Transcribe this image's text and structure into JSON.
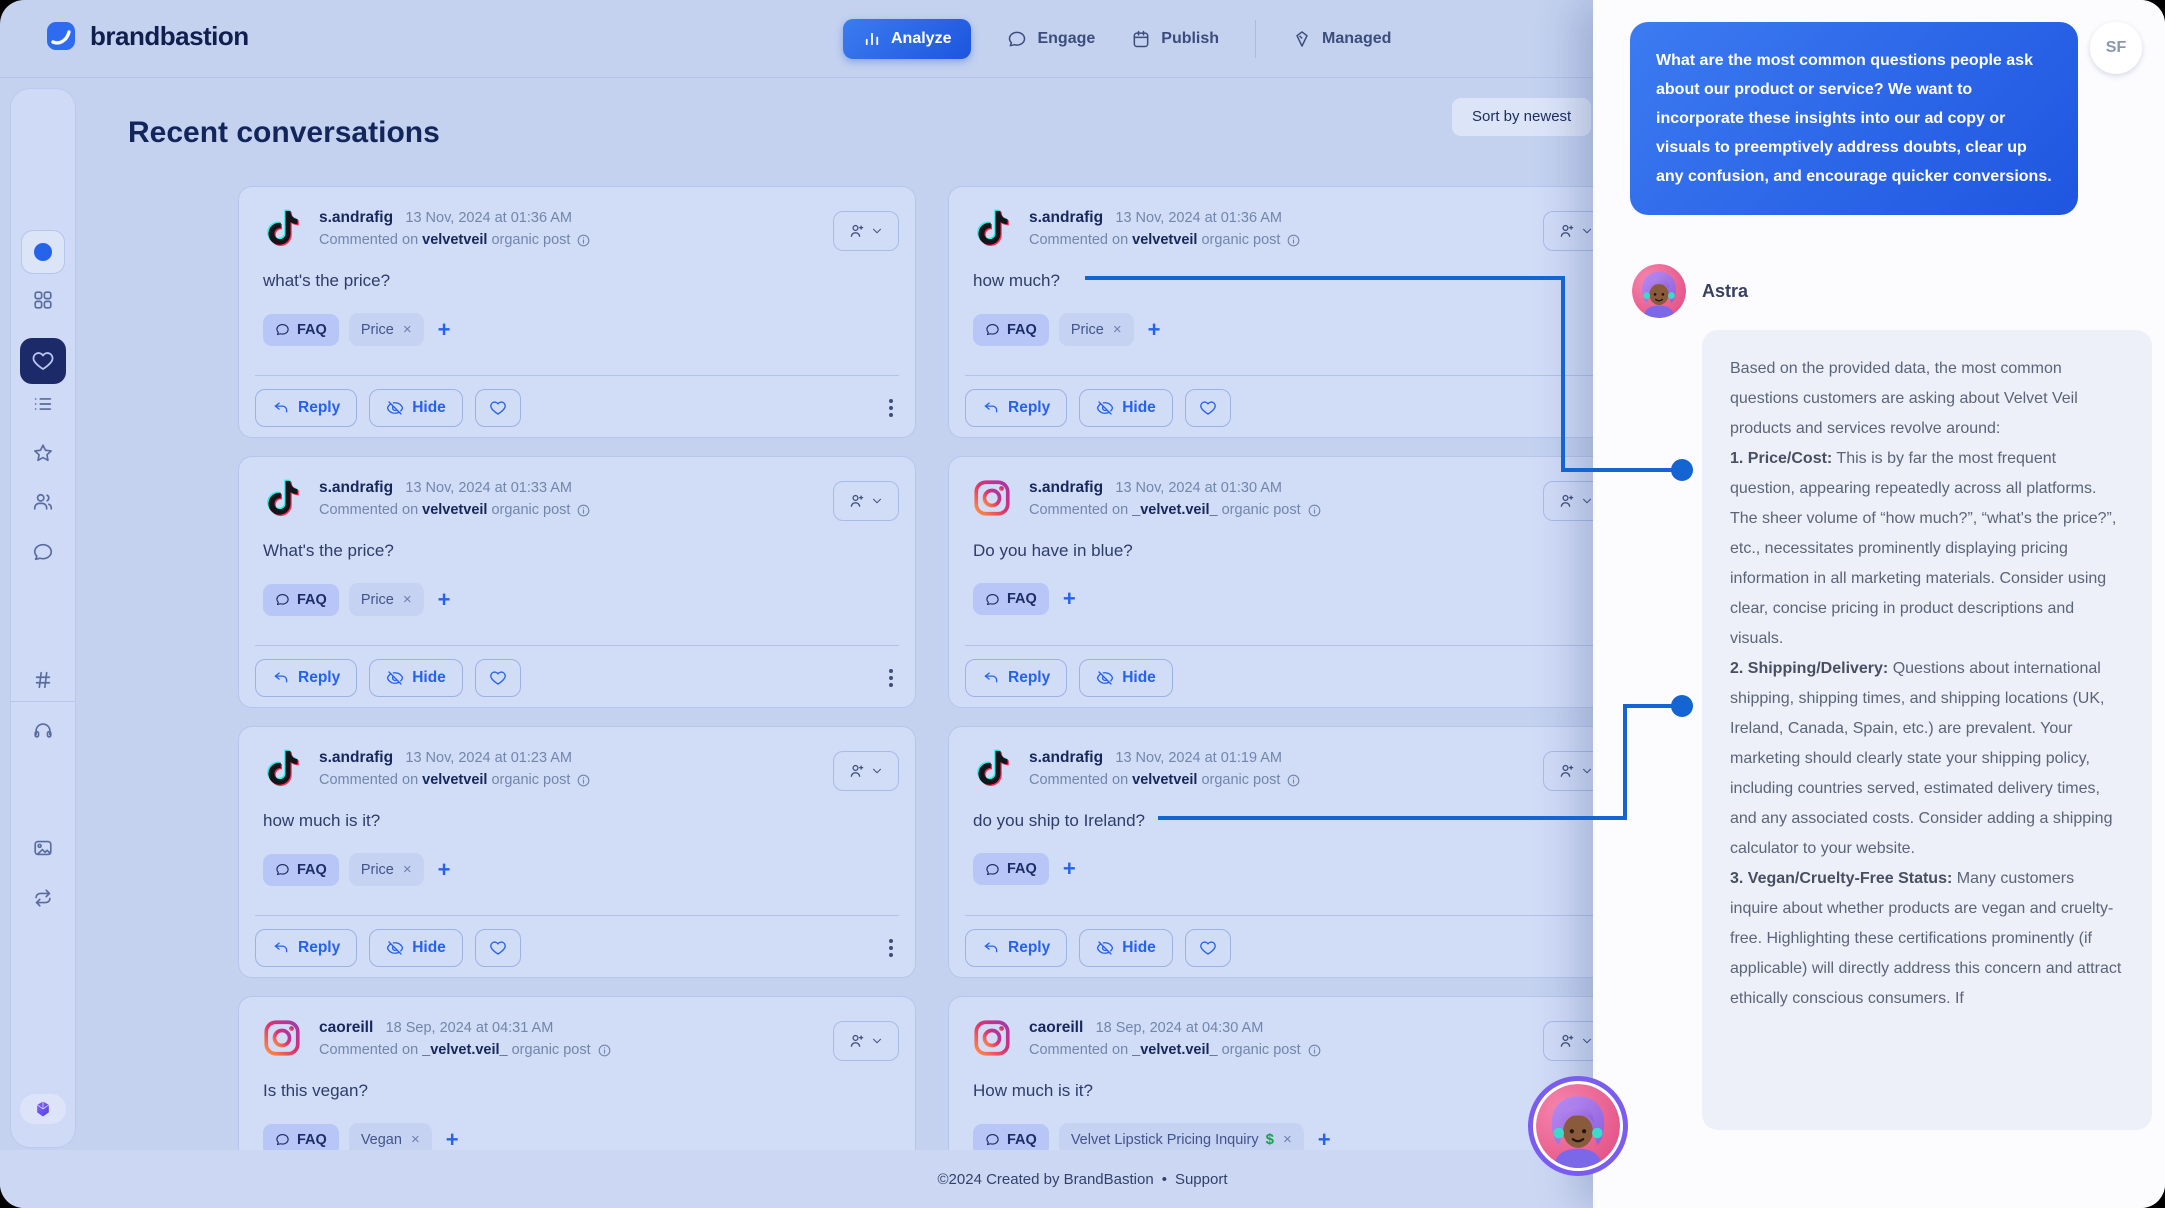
{
  "colors": {
    "accent": "#2563eb",
    "connector": "#1464d2",
    "page_bg": "#c4d2f0",
    "card_bg": "#d1dcf7",
    "panel_bg": "#fcfcfe",
    "user_bubble_start": "#3c7bf1",
    "user_bubble_end": "#1f55e0",
    "active_nav_start": "#3b7cf0",
    "active_nav_end": "#1d55dd",
    "faq_pill_bg": "#b7c6f7",
    "reply_bubble_bg": "#edf0f8",
    "dollar_green": "#16a34a",
    "dark_navy": "#13265c"
  },
  "nav": {
    "brand": "brandbastion",
    "tabs": [
      {
        "label": "Analyze",
        "active": true
      },
      {
        "label": "Engage",
        "active": false
      },
      {
        "label": "Publish",
        "active": false
      },
      {
        "label": "Managed",
        "active": false
      }
    ]
  },
  "sidebar": {
    "icons": [
      "workspace-dot",
      "grid",
      "favorites-heart",
      "list",
      "star",
      "audience",
      "comments",
      "hashtag",
      "listening",
      "media",
      "repost",
      "assistant-cube"
    ]
  },
  "header": {
    "title": "Recent conversations",
    "sort_label": "Sort by newest"
  },
  "card_labels": {
    "context_prefix": "Commented on",
    "context_suffix": "organic post",
    "reply": "Reply",
    "hide": "Hide",
    "add_tag": "+"
  },
  "cards": [
    {
      "platform": "tiktok",
      "username": "s.andrafig",
      "date": "13 Nov, 2024 at 01:36 AM",
      "account": "velvetveil",
      "comment": "what's the price?",
      "has_like": true,
      "tags": [
        {
          "label": "FAQ",
          "primary": true
        },
        {
          "label": "Price",
          "removable": true
        }
      ]
    },
    {
      "platform": "tiktok",
      "username": "s.andrafig",
      "date": "13 Nov, 2024 at 01:36 AM",
      "account": "velvetveil",
      "comment": "how much?",
      "has_like": true,
      "tags": [
        {
          "label": "FAQ",
          "primary": true
        },
        {
          "label": "Price",
          "removable": true
        }
      ]
    },
    {
      "platform": "tiktok",
      "username": "s.andrafig",
      "date": "13 Nov, 2024 at 01:33 AM",
      "account": "velvetveil",
      "comment": "What's the price?",
      "has_like": true,
      "tags": [
        {
          "label": "FAQ",
          "primary": true
        },
        {
          "label": "Price",
          "removable": true
        }
      ]
    },
    {
      "platform": "instagram",
      "username": "s.andrafig",
      "date": "13 Nov, 2024 at 01:30 AM",
      "account": "_velvet.veil_",
      "comment": "Do you have in blue?",
      "has_like": false,
      "tags": [
        {
          "label": "FAQ",
          "primary": true
        }
      ]
    },
    {
      "platform": "tiktok",
      "username": "s.andrafig",
      "date": "13 Nov, 2024 at 01:23 AM",
      "account": "velvetveil",
      "comment": "how much is it?",
      "has_like": true,
      "tags": [
        {
          "label": "FAQ",
          "primary": true
        },
        {
          "label": "Price",
          "removable": true
        }
      ]
    },
    {
      "platform": "tiktok",
      "username": "s.andrafig",
      "date": "13 Nov, 2024 at 01:19 AM",
      "account": "velvetveil",
      "comment": "do you ship to Ireland?",
      "has_like": true,
      "tags": [
        {
          "label": "FAQ",
          "primary": true
        }
      ]
    },
    {
      "platform": "instagram",
      "username": "caoreill",
      "date": "18 Sep, 2024 at 04:31 AM",
      "account": "_velvet.veil_",
      "comment": "Is this vegan?",
      "has_like": false,
      "tags": [
        {
          "label": "FAQ",
          "primary": true
        },
        {
          "label": "Vegan",
          "removable": true
        }
      ]
    },
    {
      "platform": "instagram",
      "username": "caoreill",
      "date": "18 Sep, 2024 at 04:30 AM",
      "account": "_velvet.veil_",
      "comment": "How much is it?",
      "has_like": false,
      "tags": [
        {
          "label": "FAQ",
          "primary": true
        },
        {
          "label": "Velvet Lipstick Pricing Inquiry",
          "removable": true,
          "money": true
        }
      ]
    }
  ],
  "page_footer": {
    "copyright": "©2024 Created by BrandBastion",
    "separator": "•",
    "support": "Support"
  },
  "assistant_panel": {
    "user_message": "What are the most common questions people ask about our product or service? We want to incorporate these insights into our ad copy or visuals to preemptively address doubts, clear up any confusion, and encourage quicker conversions.",
    "user_initials": "SF",
    "assistant_name": "Astra",
    "reply_paragraphs": [
      {
        "lead": "",
        "text": "Based on the provided data, the most common questions customers are asking about Velvet Veil products and services revolve around:"
      },
      {
        "lead": "1. Price/Cost:",
        "text": " This is by far the most frequent question, appearing repeatedly across all platforms. The sheer volume of “how much?”, “what's the price?”, etc., necessitates prominently displaying pricing information in all marketing materials. Consider using clear, concise pricing in product descriptions and visuals."
      },
      {
        "lead": "2. Shipping/Delivery:",
        "text": " Questions about international shipping, shipping times, and shipping locations (UK, Ireland, Canada, Spain, etc.) are prevalent. Your marketing should clearly state your shipping policy, including countries served, estimated delivery times, and any associated costs. Consider adding a shipping calculator to your website."
      },
      {
        "lead": "3. Vegan/Cruelty-Free Status:",
        "text": " Many customers inquire about whether products are vegan and cruelty-free. Highlighting these certifications prominently (if applicable) will directly address this concern and attract ethically conscious consumers. If"
      }
    ]
  }
}
